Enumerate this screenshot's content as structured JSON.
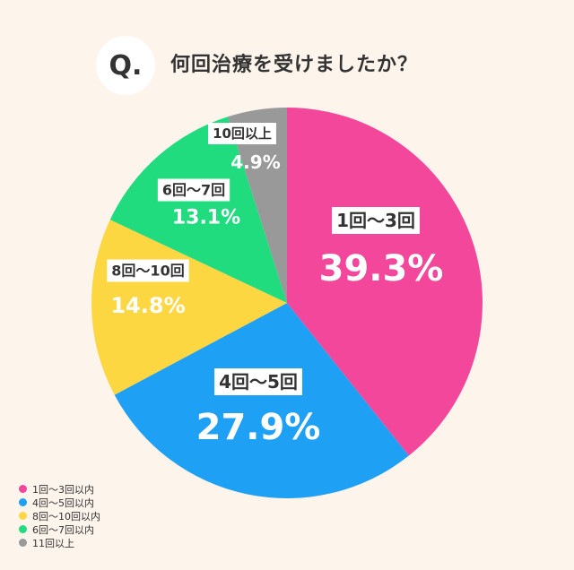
{
  "header": {
    "badge": "Q.",
    "question": "何回治療を受けましたか？"
  },
  "chart_data": {
    "type": "pie",
    "title": "何回治療を受けましたか？",
    "slices": [
      {
        "label": "1回〜3回",
        "legend": "1回〜3回以内",
        "value": 39.3,
        "pct_label": "39.3%",
        "color": "#f2479b"
      },
      {
        "label": "4回〜5回",
        "legend": "4回〜5回以内",
        "value": 27.9,
        "pct_label": "27.9%",
        "color": "#1ea1f5"
      },
      {
        "label": "8回〜10回",
        "legend": "8回〜10回以内",
        "value": 14.8,
        "pct_label": "14.8%",
        "color": "#fdd742"
      },
      {
        "label": "6回〜7回",
        "legend": "6回〜7回以内",
        "value": 13.1,
        "pct_label": "13.1%",
        "color": "#21dc7f"
      },
      {
        "label": "10回以上",
        "legend": "11回以上",
        "value": 4.9,
        "pct_label": "4.9%",
        "color": "#999999"
      }
    ],
    "legend_position": "bottom-left"
  }
}
